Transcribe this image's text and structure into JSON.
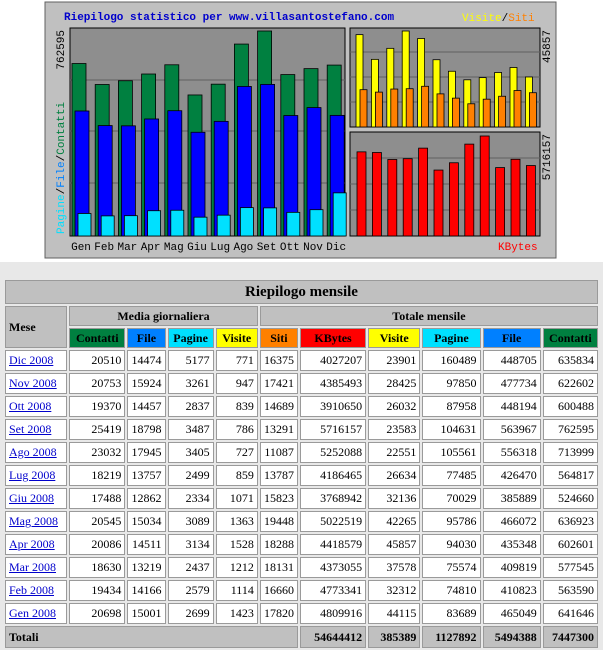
{
  "graph": {
    "title": "Riepilogo statistico per www.villasantostefano.com",
    "separator": "/",
    "left_legend": [
      "Pagine",
      "File",
      "Contatti"
    ],
    "top_right_legend": [
      "Visite",
      "Siti"
    ],
    "bottom_right_legend": "KBytes",
    "left_max": 762595,
    "top_right_max": 45857,
    "bottom_right_max": 5716157,
    "months": [
      "Gen",
      "Feb",
      "Mar",
      "Apr",
      "Mag",
      "Giu",
      "Lug",
      "Ago",
      "Set",
      "Ott",
      "Nov",
      "Dic"
    ]
  },
  "table": {
    "title": "Riepilogo mensile",
    "month_header": "Mese",
    "group_daily": "Media giornaliera",
    "group_total": "Totale mensile",
    "columns": [
      "Contatti",
      "File",
      "Pagine",
      "Visite",
      "Siti",
      "KBytes",
      "Visite",
      "Pagine",
      "File",
      "Contatti"
    ],
    "rows": [
      [
        "Dic 2008",
        20510,
        14474,
        5177,
        771,
        16375,
        4027207,
        23901,
        160489,
        448705,
        635834
      ],
      [
        "Nov 2008",
        20753,
        15924,
        3261,
        947,
        17421,
        4385493,
        28425,
        97850,
        477734,
        622602
      ],
      [
        "Ott 2008",
        19370,
        14457,
        2837,
        839,
        14689,
        3910650,
        26032,
        87958,
        448194,
        600488
      ],
      [
        "Set 2008",
        25419,
        18798,
        3487,
        786,
        13291,
        5716157,
        23583,
        104631,
        563967,
        762595
      ],
      [
        "Ago 2008",
        23032,
        17945,
        3405,
        727,
        11087,
        5252088,
        22551,
        105561,
        556318,
        713999
      ],
      [
        "Lug 2008",
        18219,
        13757,
        2499,
        859,
        13787,
        4186465,
        26634,
        77485,
        426470,
        564817
      ],
      [
        "Giu 2008",
        17488,
        12862,
        2334,
        1071,
        15823,
        3768942,
        32136,
        70029,
        385889,
        524660
      ],
      [
        "Mag 2008",
        20545,
        15034,
        3089,
        1363,
        19448,
        5022519,
        42265,
        95786,
        466072,
        636923
      ],
      [
        "Apr 2008",
        20086,
        14511,
        3134,
        1528,
        18288,
        4418579,
        45857,
        94030,
        435348,
        602601
      ],
      [
        "Mar 2008",
        18630,
        13219,
        2437,
        1212,
        18131,
        4373055,
        37578,
        75574,
        409819,
        577545
      ],
      [
        "Feb 2008",
        19434,
        14166,
        2579,
        1114,
        16660,
        4773341,
        32312,
        74810,
        410823,
        563590
      ],
      [
        "Gen 2008",
        20698,
        15001,
        2699,
        1423,
        17820,
        4809916,
        44115,
        83689,
        465049,
        641646
      ]
    ],
    "totals": {
      "label": "Totali",
      "values": [
        54644412,
        385389,
        1127892,
        5494388,
        7447300
      ]
    }
  }
}
